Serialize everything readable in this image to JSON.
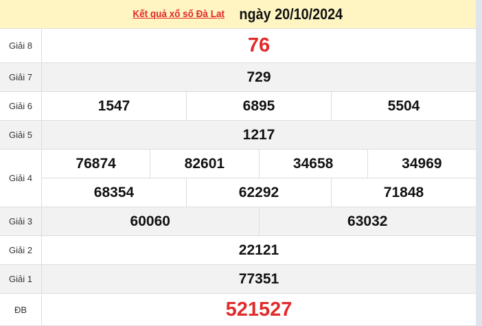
{
  "header": {
    "link_text": "Kết quả xổ số Đà Lạt",
    "date_text": "ngày 20/10/2024"
  },
  "colors": {
    "header_bg": "#fff5c2",
    "accent_red": "#e12a2a",
    "alt_row": "#f2f2f2"
  },
  "prizes": [
    {
      "label": "Giải 8",
      "lines": [
        [
          "76"
        ]
      ],
      "highlight": true
    },
    {
      "label": "Giải 7",
      "lines": [
        [
          "729"
        ]
      ]
    },
    {
      "label": "Giải 6",
      "lines": [
        [
          "1547",
          "6895",
          "5504"
        ]
      ]
    },
    {
      "label": "Giải 5",
      "lines": [
        [
          "1217"
        ]
      ]
    },
    {
      "label": "Giải 4",
      "lines": [
        [
          "76874",
          "82601",
          "34658",
          "34969"
        ],
        [
          "68354",
          "62292",
          "71848"
        ]
      ]
    },
    {
      "label": "Giải 3",
      "lines": [
        [
          "60060",
          "63032"
        ]
      ]
    },
    {
      "label": "Giải 2",
      "lines": [
        [
          "22121"
        ]
      ]
    },
    {
      "label": "Giải 1",
      "lines": [
        [
          "77351"
        ]
      ]
    },
    {
      "label": "ĐB",
      "lines": [
        [
          "521527"
        ]
      ],
      "highlight": true
    }
  ]
}
